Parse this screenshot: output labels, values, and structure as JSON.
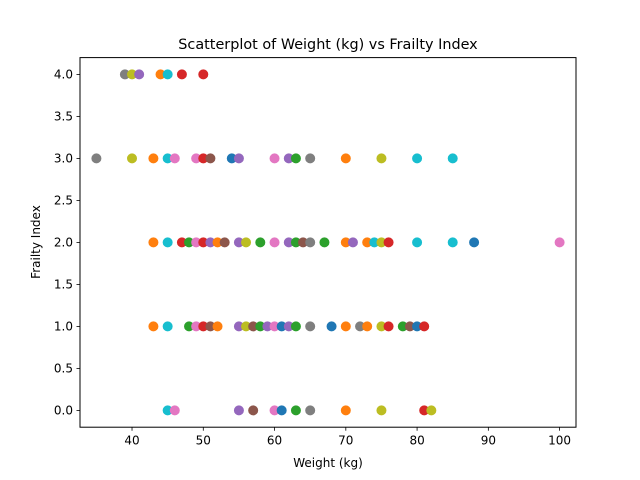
{
  "chart_data": {
    "type": "scatter",
    "title": "Scatterplot of Weight (kg) vs Frailty Index",
    "xlabel": "Weight (kg)",
    "ylabel": "Frailty Index",
    "xlim": [
      32.7,
      102.3
    ],
    "ylim": [
      -0.2,
      4.2
    ],
    "xticks": [
      "40",
      "50",
      "60",
      "70",
      "80",
      "90",
      "100"
    ],
    "yticks": [
      "0.0",
      "0.5",
      "1.0",
      "1.5",
      "2.0",
      "2.5",
      "3.0",
      "3.5",
      "4.0"
    ],
    "xtick_values": [
      40,
      50,
      60,
      70,
      80,
      90,
      100
    ],
    "ytick_values": [
      0,
      0.5,
      1,
      1.5,
      2,
      2.5,
      3,
      3.5,
      4
    ],
    "grid": false,
    "legend": "none",
    "colors": [
      "#1f77b4",
      "#ff7f0e",
      "#2ca02c",
      "#d62728",
      "#9467bd",
      "#8c564b",
      "#e377c2",
      "#7f7f7f",
      "#bcbd22",
      "#17becf"
    ],
    "points": [
      {
        "x": 39,
        "y": 4,
        "c": "#7f7f7f"
      },
      {
        "x": 40,
        "y": 4,
        "c": "#bcbd22"
      },
      {
        "x": 41,
        "y": 4,
        "c": "#9467bd"
      },
      {
        "x": 44,
        "y": 4,
        "c": "#ff7f0e"
      },
      {
        "x": 45,
        "y": 4,
        "c": "#17becf"
      },
      {
        "x": 47,
        "y": 4,
        "c": "#d62728"
      },
      {
        "x": 50,
        "y": 4,
        "c": "#d62728"
      },
      {
        "x": 35,
        "y": 3,
        "c": "#7f7f7f"
      },
      {
        "x": 40,
        "y": 3,
        "c": "#bcbd22"
      },
      {
        "x": 43,
        "y": 3,
        "c": "#ff7f0e"
      },
      {
        "x": 45,
        "y": 3,
        "c": "#17becf"
      },
      {
        "x": 46,
        "y": 3,
        "c": "#e377c2"
      },
      {
        "x": 49,
        "y": 3,
        "c": "#e377c2"
      },
      {
        "x": 50,
        "y": 3,
        "c": "#d62728"
      },
      {
        "x": 51,
        "y": 3,
        "c": "#8c564b"
      },
      {
        "x": 54,
        "y": 3,
        "c": "#1f77b4"
      },
      {
        "x": 55,
        "y": 3,
        "c": "#9467bd"
      },
      {
        "x": 60,
        "y": 3,
        "c": "#e377c2"
      },
      {
        "x": 62,
        "y": 3,
        "c": "#9467bd"
      },
      {
        "x": 63,
        "y": 3,
        "c": "#2ca02c"
      },
      {
        "x": 65,
        "y": 3,
        "c": "#7f7f7f"
      },
      {
        "x": 70,
        "y": 3,
        "c": "#ff7f0e"
      },
      {
        "x": 75,
        "y": 3,
        "c": "#bcbd22"
      },
      {
        "x": 80,
        "y": 3,
        "c": "#17becf"
      },
      {
        "x": 85,
        "y": 3,
        "c": "#17becf"
      },
      {
        "x": 43,
        "y": 2,
        "c": "#ff7f0e"
      },
      {
        "x": 45,
        "y": 2,
        "c": "#17becf"
      },
      {
        "x": 47,
        "y": 2,
        "c": "#d62728"
      },
      {
        "x": 48,
        "y": 2,
        "c": "#2ca02c"
      },
      {
        "x": 49,
        "y": 2,
        "c": "#e377c2"
      },
      {
        "x": 50,
        "y": 2,
        "c": "#d62728"
      },
      {
        "x": 51,
        "y": 2,
        "c": "#9467bd"
      },
      {
        "x": 52,
        "y": 2,
        "c": "#ff7f0e"
      },
      {
        "x": 53,
        "y": 2,
        "c": "#8c564b"
      },
      {
        "x": 55,
        "y": 2,
        "c": "#9467bd"
      },
      {
        "x": 56,
        "y": 2,
        "c": "#bcbd22"
      },
      {
        "x": 58,
        "y": 2,
        "c": "#2ca02c"
      },
      {
        "x": 60,
        "y": 2,
        "c": "#e377c2"
      },
      {
        "x": 62,
        "y": 2,
        "c": "#9467bd"
      },
      {
        "x": 63,
        "y": 2,
        "c": "#2ca02c"
      },
      {
        "x": 64,
        "y": 2,
        "c": "#8c564b"
      },
      {
        "x": 65,
        "y": 2,
        "c": "#7f7f7f"
      },
      {
        "x": 67,
        "y": 2,
        "c": "#2ca02c"
      },
      {
        "x": 70,
        "y": 2,
        "c": "#ff7f0e"
      },
      {
        "x": 71,
        "y": 2,
        "c": "#9467bd"
      },
      {
        "x": 73,
        "y": 2,
        "c": "#ff7f0e"
      },
      {
        "x": 74,
        "y": 2,
        "c": "#17becf"
      },
      {
        "x": 75,
        "y": 2,
        "c": "#bcbd22"
      },
      {
        "x": 76,
        "y": 2,
        "c": "#d62728"
      },
      {
        "x": 80,
        "y": 2,
        "c": "#17becf"
      },
      {
        "x": 85,
        "y": 2,
        "c": "#17becf"
      },
      {
        "x": 88,
        "y": 2,
        "c": "#1f77b4"
      },
      {
        "x": 100,
        "y": 2,
        "c": "#e377c2"
      },
      {
        "x": 43,
        "y": 1,
        "c": "#ff7f0e"
      },
      {
        "x": 45,
        "y": 1,
        "c": "#17becf"
      },
      {
        "x": 48,
        "y": 1,
        "c": "#2ca02c"
      },
      {
        "x": 49,
        "y": 1,
        "c": "#e377c2"
      },
      {
        "x": 50,
        "y": 1,
        "c": "#d62728"
      },
      {
        "x": 51,
        "y": 1,
        "c": "#8c564b"
      },
      {
        "x": 52,
        "y": 1,
        "c": "#ff7f0e"
      },
      {
        "x": 55,
        "y": 1,
        "c": "#9467bd"
      },
      {
        "x": 56,
        "y": 1,
        "c": "#bcbd22"
      },
      {
        "x": 57,
        "y": 1,
        "c": "#8c564b"
      },
      {
        "x": 58,
        "y": 1,
        "c": "#2ca02c"
      },
      {
        "x": 59,
        "y": 1,
        "c": "#9467bd"
      },
      {
        "x": 60,
        "y": 1,
        "c": "#e377c2"
      },
      {
        "x": 61,
        "y": 1,
        "c": "#1f77b4"
      },
      {
        "x": 62,
        "y": 1,
        "c": "#9467bd"
      },
      {
        "x": 63,
        "y": 1,
        "c": "#2ca02c"
      },
      {
        "x": 65,
        "y": 1,
        "c": "#7f7f7f"
      },
      {
        "x": 68,
        "y": 1,
        "c": "#1f77b4"
      },
      {
        "x": 70,
        "y": 1,
        "c": "#ff7f0e"
      },
      {
        "x": 72,
        "y": 1,
        "c": "#7f7f7f"
      },
      {
        "x": 73,
        "y": 1,
        "c": "#ff7f0e"
      },
      {
        "x": 75,
        "y": 1,
        "c": "#bcbd22"
      },
      {
        "x": 76,
        "y": 1,
        "c": "#d62728"
      },
      {
        "x": 78,
        "y": 1,
        "c": "#2ca02c"
      },
      {
        "x": 79,
        "y": 1,
        "c": "#8c564b"
      },
      {
        "x": 80,
        "y": 1,
        "c": "#1f77b4"
      },
      {
        "x": 81,
        "y": 1,
        "c": "#d62728"
      },
      {
        "x": 45,
        "y": 0,
        "c": "#17becf"
      },
      {
        "x": 46,
        "y": 0,
        "c": "#e377c2"
      },
      {
        "x": 55,
        "y": 0,
        "c": "#9467bd"
      },
      {
        "x": 57,
        "y": 0,
        "c": "#8c564b"
      },
      {
        "x": 60,
        "y": 0,
        "c": "#e377c2"
      },
      {
        "x": 61,
        "y": 0,
        "c": "#1f77b4"
      },
      {
        "x": 63,
        "y": 0,
        "c": "#2ca02c"
      },
      {
        "x": 65,
        "y": 0,
        "c": "#7f7f7f"
      },
      {
        "x": 70,
        "y": 0,
        "c": "#ff7f0e"
      },
      {
        "x": 75,
        "y": 0,
        "c": "#bcbd22"
      },
      {
        "x": 81,
        "y": 0,
        "c": "#d62728"
      },
      {
        "x": 82,
        "y": 0,
        "c": "#bcbd22"
      }
    ]
  }
}
